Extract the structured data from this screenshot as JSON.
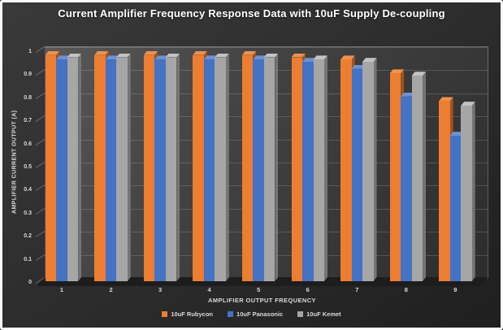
{
  "title": "Current Amplifier Frequency Response Data with 10uF Supply De-coupling",
  "text_color": "#D9D9D9",
  "chart_data": {
    "type": "bar",
    "subtype": "3d-clustered-column",
    "title": "Current Amplifier Frequency Response Data with 10uF Supply De-coupling",
    "categories": [
      "1",
      "2",
      "3",
      "4",
      "5",
      "6",
      "7",
      "8",
      "9"
    ],
    "series": [
      {
        "name": "10uF Rubycon",
        "color": "#ED7D31",
        "color_top": "#F0914C",
        "color_side": "#9C5523",
        "values": [
          0.98,
          0.98,
          0.98,
          0.98,
          0.98,
          0.97,
          0.96,
          0.9,
          0.78
        ]
      },
      {
        "name": "10uF Panasonic",
        "color": "#4472C4",
        "color_top": "#6D92D3",
        "color_side": "#2E4E86",
        "values": [
          0.96,
          0.96,
          0.96,
          0.96,
          0.96,
          0.95,
          0.92,
          0.8,
          0.63
        ]
      },
      {
        "name": "10uF Kemet",
        "color": "#A6A6A6",
        "color_top": "#C3C3C3",
        "color_side": "#757575",
        "values": [
          0.97,
          0.97,
          0.97,
          0.97,
          0.97,
          0.96,
          0.95,
          0.89,
          0.76
        ]
      }
    ],
    "xlabel": "AMPLIFIER OUTPUT FREQUENCY",
    "ylabel": "AMPLIFIER CURRENT OUTPUT (A)",
    "ylim": [
      0,
      1
    ],
    "yticks": [
      "1",
      "0.9",
      "0.8",
      "0.7",
      "0.6",
      "0.5",
      "0.4",
      "0.3",
      "0.2",
      "0.1",
      "0"
    ],
    "grid": true,
    "legend_position": "bottom"
  }
}
